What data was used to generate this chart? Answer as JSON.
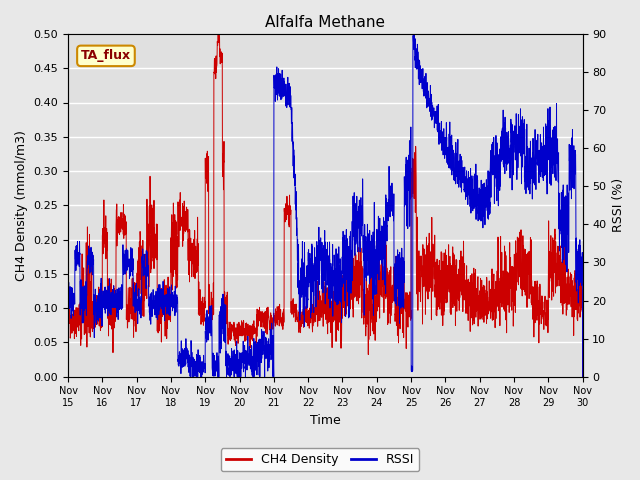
{
  "title": "Alfalfa Methane",
  "xlabel": "Time",
  "ylabel_left": "CH4 Density (mmol/m3)",
  "ylabel_right": "RSSI (%)",
  "annotation": "TA_flux",
  "ylim_left": [
    0.0,
    0.5
  ],
  "ylim_right": [
    0,
    90
  ],
  "bg_color": "#e8e8e8",
  "plot_bg_color": "#e0e0e0",
  "grid_color": "white",
  "ch4_color": "#cc0000",
  "rssi_color": "#0000cc",
  "legend_ch4": "CH4 Density",
  "legend_rssi": "RSSI",
  "x_start": 15,
  "x_end": 30,
  "x_ticks": [
    15,
    16,
    17,
    18,
    19,
    20,
    21,
    22,
    23,
    24,
    25,
    26,
    27,
    28,
    29,
    30
  ],
  "x_tick_labels": [
    "Nov 15",
    "Nov 16",
    "Nov 17",
    "Nov 18",
    "Nov 19",
    "Nov 20",
    "Nov 21",
    "Nov 22",
    "Nov 23",
    "Nov 24",
    "Nov 25",
    "Nov 26",
    "Nov 27",
    "Nov 28",
    "Nov 29",
    "Nov 30"
  ]
}
